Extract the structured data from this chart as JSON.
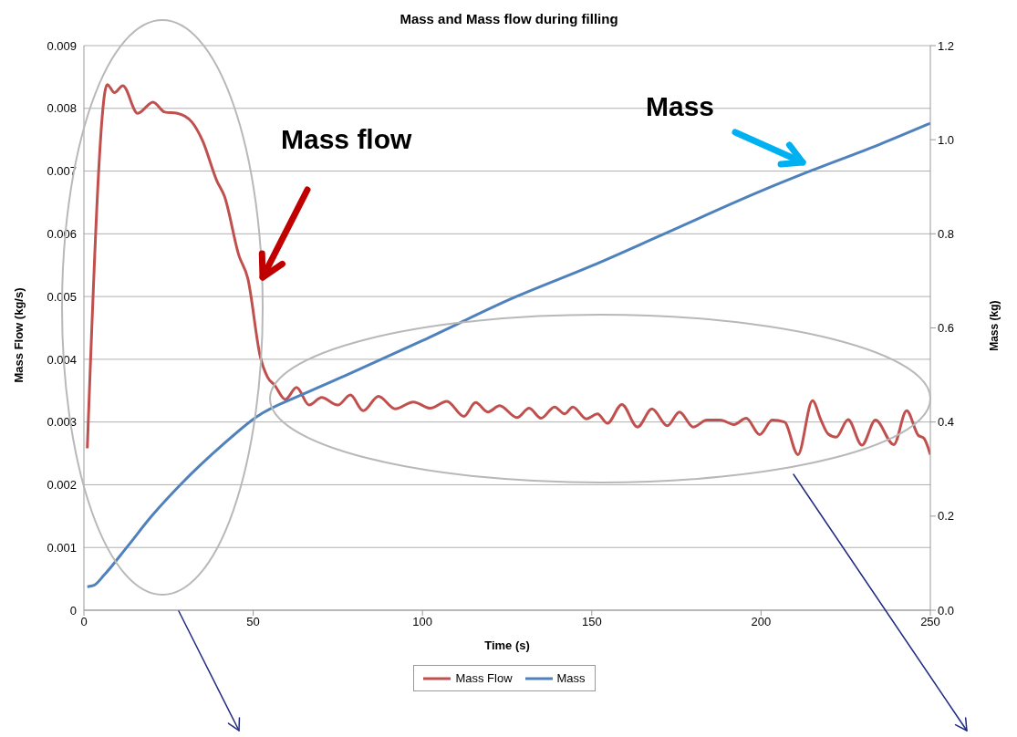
{
  "chart_data": {
    "type": "line",
    "title": "Mass and Mass flow during filling",
    "xlabel": "Time (s)",
    "ylabel": "Mass Flow (kg/s)",
    "y2label": "Mass (kg)",
    "xlim": [
      0,
      250
    ],
    "xticks": [
      0,
      50,
      100,
      150,
      200,
      250
    ],
    "ylim": [
      0,
      0.009
    ],
    "yticks": [
      0,
      0.001,
      0.002,
      0.003,
      0.004,
      0.005,
      0.006,
      0.007,
      0.008,
      0.009
    ],
    "y2lim": [
      0,
      1.2
    ],
    "y2ticks": [
      {
        "value": 0,
        "label": "0.0"
      },
      {
        "value": 0.2,
        "label": "0.2"
      },
      {
        "value": 0.4,
        "label": "0.4"
      },
      {
        "value": 0.6,
        "label": "0.6"
      },
      {
        "value": 0.8,
        "label": "0.8"
      },
      {
        "value": 1,
        "label": "1.0"
      },
      {
        "value": 1.2,
        "label": "1.2"
      }
    ],
    "grid": "y",
    "legend": "bottom",
    "marker": "none",
    "line_style": "solid",
    "annotations": [
      "Mass flow",
      "Mass"
    ],
    "series": [
      {
        "name": "Mass Flow",
        "color": "#c0504d",
        "x": [
          1,
          6.9,
          9,
          11.5,
          15.9,
          20.4,
          23.9,
          27.6,
          31.9,
          35,
          39.3,
          41.5,
          45.8,
          48.4,
          52.1,
          54.3,
          56.3,
          59.5,
          62.8,
          66.5,
          70.2,
          75,
          78.7,
          82.5,
          87,
          91.9,
          97.3,
          102.3,
          107.2,
          112.2,
          115.7,
          119.3,
          122.8,
          127.9,
          131.5,
          135,
          139,
          142,
          144.4,
          148.4,
          151.7,
          154.6,
          158.9,
          163.5,
          167.8,
          172.3,
          175.9,
          180,
          184,
          188,
          192,
          195.6,
          199.6,
          203.3,
          206.9,
          210.9,
          215.2,
          217.7,
          219.8,
          222.2,
          225.7,
          229.8,
          233.8,
          239.2,
          243,
          246.4,
          248.1,
          250
        ],
        "values": [
          0.00258,
          0.00838,
          0.00825,
          0.00836,
          0.00792,
          0.0081,
          0.00794,
          0.00792,
          0.00778,
          0.00749,
          0.00684,
          0.0066,
          0.00565,
          0.00529,
          0.00404,
          0.00371,
          0.00359,
          0.00336,
          0.00355,
          0.00327,
          0.00339,
          0.00327,
          0.00343,
          0.00318,
          0.00341,
          0.00321,
          0.00332,
          0.00322,
          0.00333,
          0.00309,
          0.00331,
          0.00316,
          0.00326,
          0.00307,
          0.00322,
          0.00306,
          0.00324,
          0.00313,
          0.00324,
          0.00305,
          0.00313,
          0.00298,
          0.00328,
          0.00292,
          0.00321,
          0.00294,
          0.00316,
          0.00292,
          0.00303,
          0.00303,
          0.00296,
          0.00306,
          0.0028,
          0.00303,
          0.003,
          0.00248,
          0.00334,
          0.00303,
          0.00281,
          0.00276,
          0.00304,
          0.00263,
          0.00303,
          0.00264,
          0.00318,
          0.00279,
          0.00274,
          0.00248
        ]
      },
      {
        "name": "Mass",
        "color": "#4f81bd",
        "axis": "y2",
        "x": [
          1,
          3,
          6,
          12.7,
          20,
          28.8,
          41.5,
          51,
          65,
          77.6,
          100,
          126.9,
          150,
          170.8,
          200,
          214.4,
          235,
          250
        ],
        "values": [
          0.05,
          0.053,
          0.075,
          0.134,
          0.2,
          0.269,
          0.355,
          0.411,
          0.46,
          0.5,
          0.573,
          0.664,
          0.732,
          0.798,
          0.891,
          0.933,
          0.99,
          1.035
        ]
      }
    ]
  }
}
